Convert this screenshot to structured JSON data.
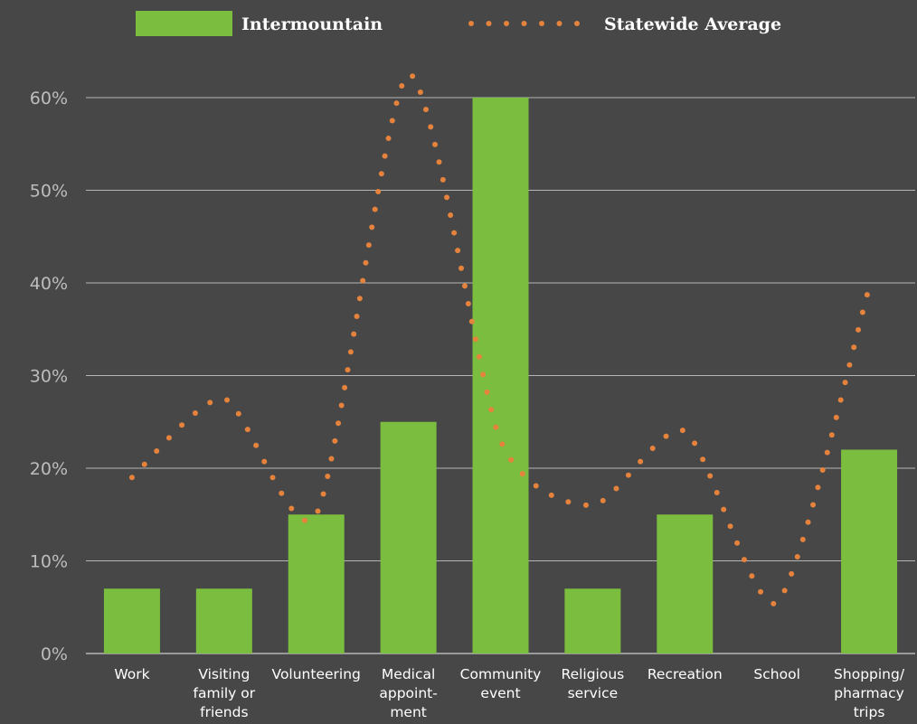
{
  "chart_data": {
    "type": "bar",
    "categories": [
      [
        "Work"
      ],
      [
        "Visiting",
        "family or",
        "friends"
      ],
      [
        "Volunteering"
      ],
      [
        "Medical",
        "appoint-",
        "ment"
      ],
      [
        "Community",
        "event"
      ],
      [
        "Religious",
        "service"
      ],
      [
        "Recreation"
      ],
      [
        "School"
      ],
      [
        "Shopping/",
        "pharmacy",
        "trips"
      ]
    ],
    "series": [
      {
        "name": "Intermountain",
        "kind": "bar",
        "values": [
          7,
          7,
          15,
          25,
          60,
          7,
          15,
          0,
          22
        ]
      },
      {
        "name": "Statewide Average",
        "kind": "dotted-line",
        "values": [
          19,
          27.5,
          15,
          62.5,
          23,
          16,
          24,
          5.5,
          39.5
        ]
      }
    ],
    "yticks": [
      "0%",
      "10%",
      "20%",
      "30%",
      "40%",
      "50%",
      "60%"
    ],
    "ylim": [
      0,
      60
    ],
    "grid": true,
    "legend_position": "top",
    "colors": {
      "bar": "#7bbd3f",
      "line": "#e5833d",
      "grid": "#b5b5b5",
      "background": "#474747"
    }
  }
}
